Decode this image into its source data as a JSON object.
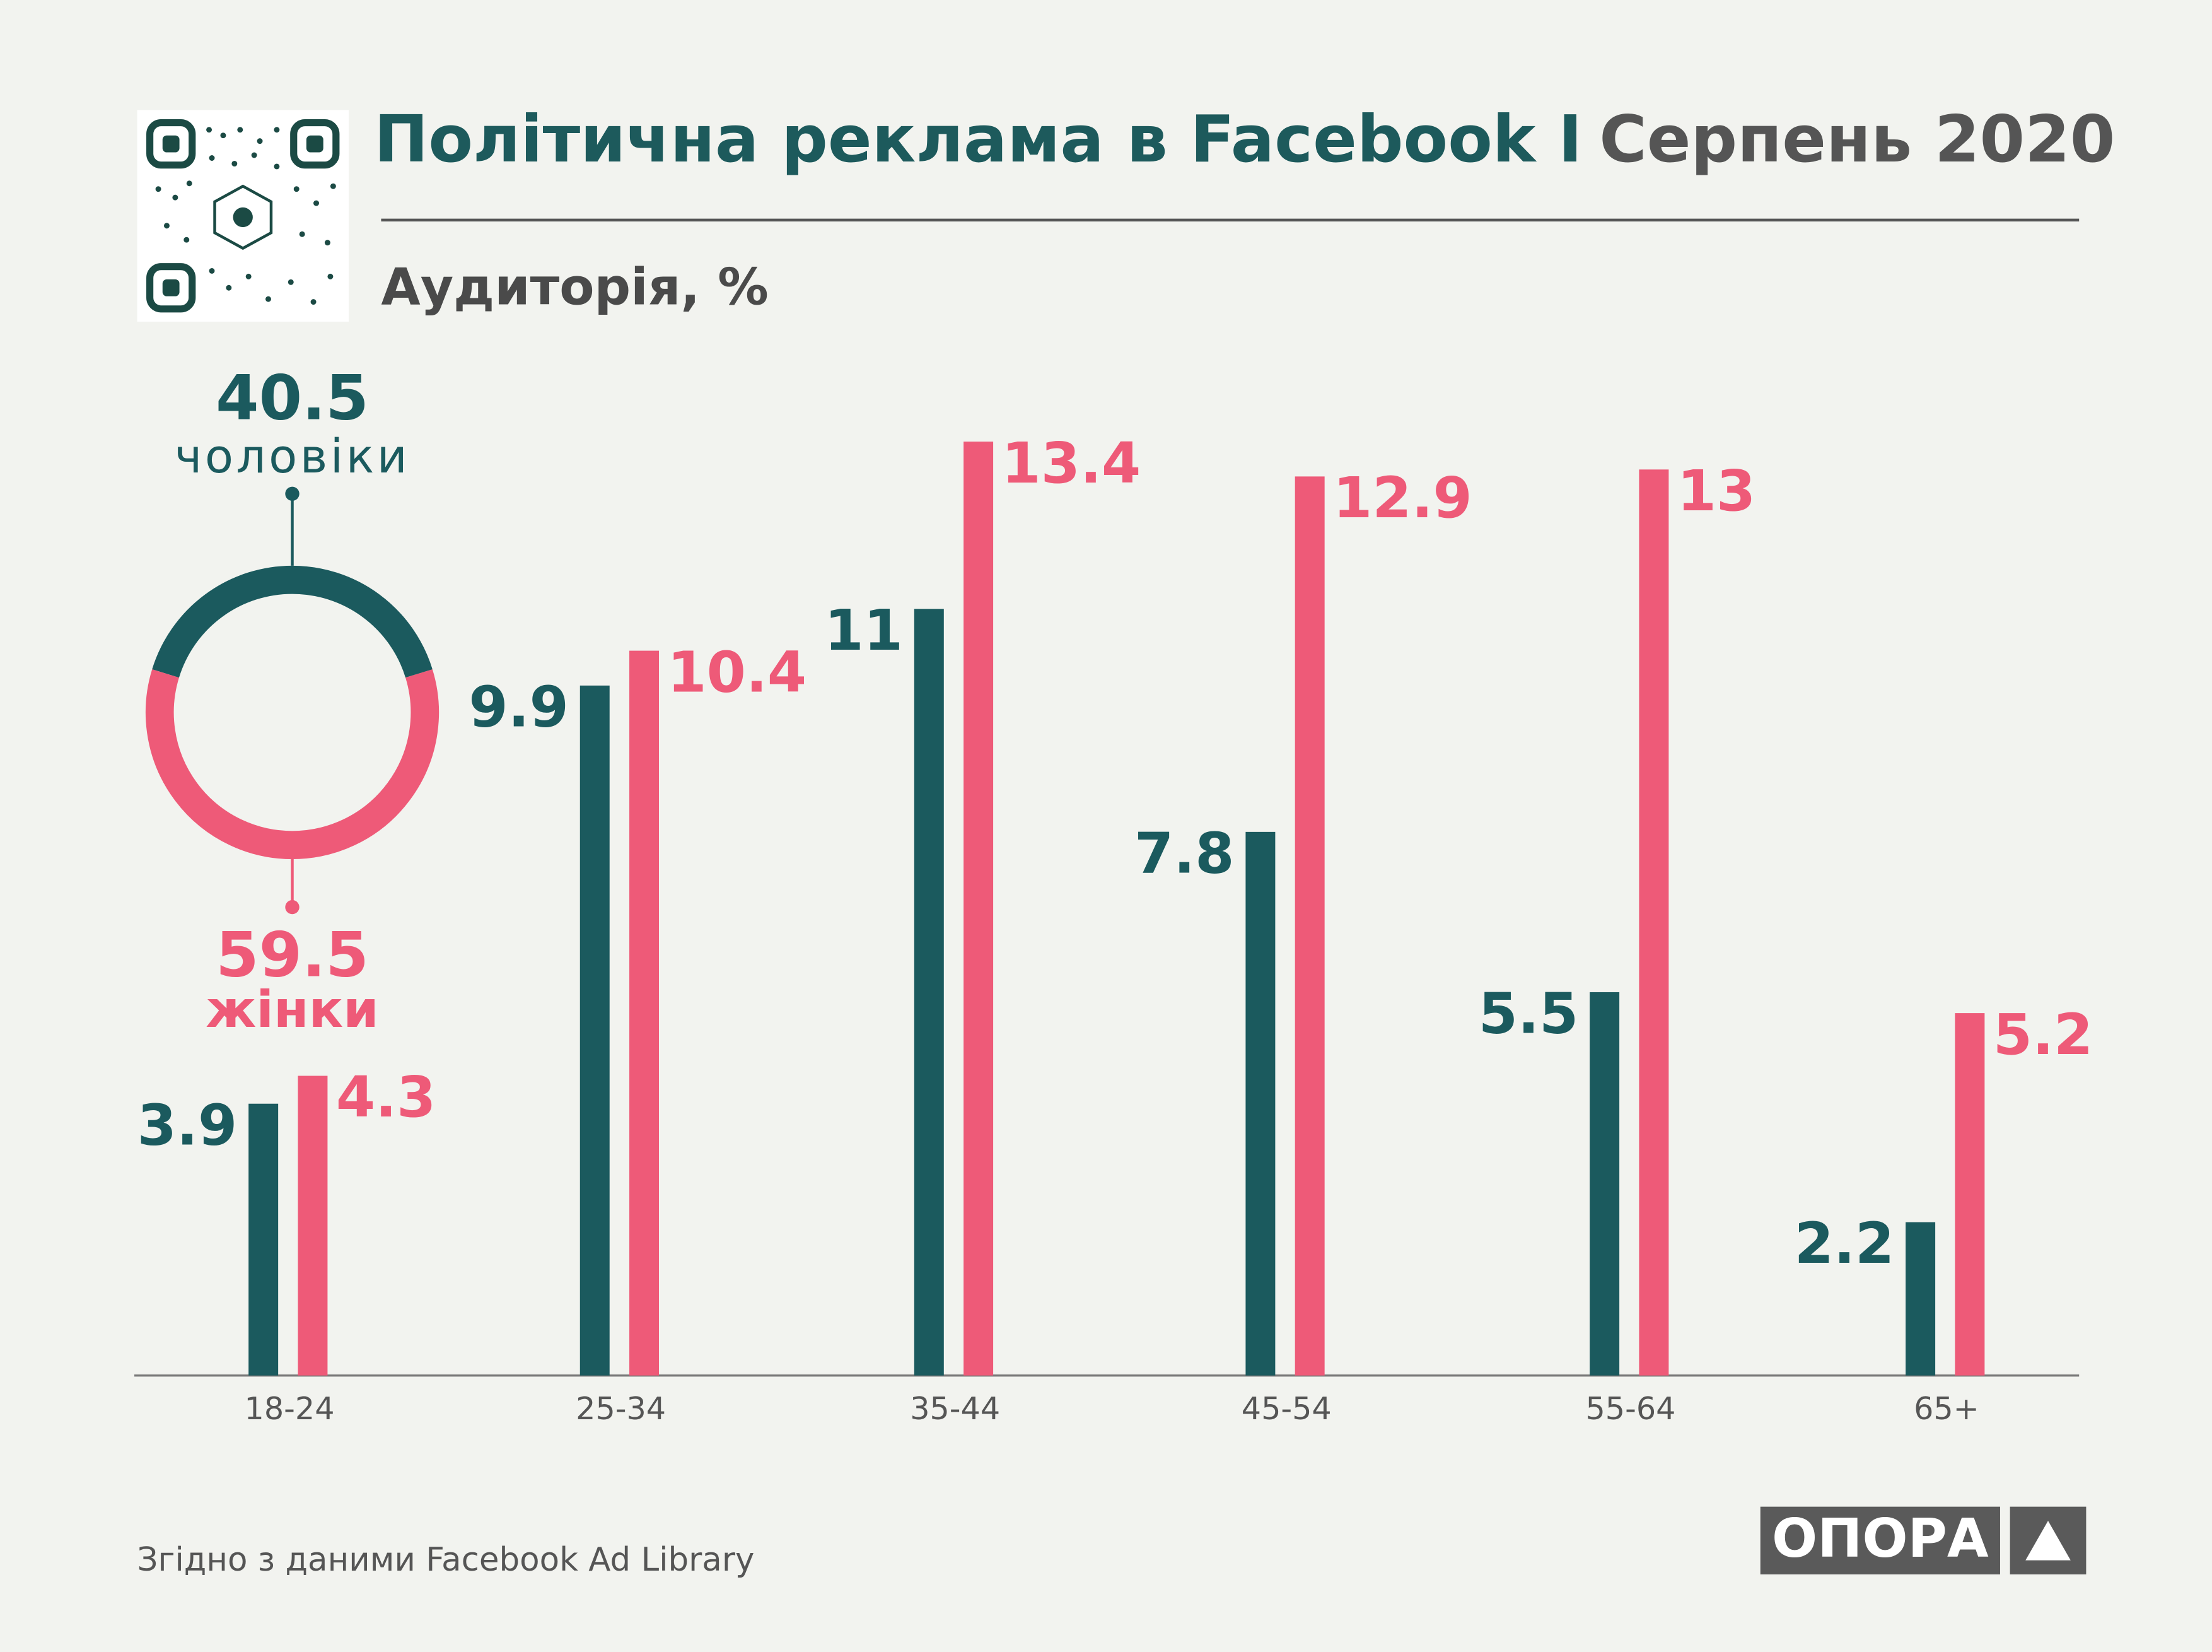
{
  "header": {
    "title": "Політична реклама в Facebook I",
    "title_date": "Серпень 2020",
    "subtitle": "Аудиторія, %"
  },
  "chart_data": [
    {
      "type": "bar",
      "categories": [
        "18-24",
        "25-34",
        "35-44",
        "45-54",
        "55-64",
        "65+"
      ],
      "series": [
        {
          "color": "#1b5a5e",
          "values": [
            3.9,
            9.9,
            11,
            7.8,
            5.5,
            2.2
          ]
        },
        {
          "color": "#ee5a78",
          "values": [
            4.3,
            10.4,
            13.4,
            12.9,
            13,
            5.2
          ]
        }
      ],
      "ylim": [
        0,
        15
      ]
    },
    {
      "type": "pie",
      "categories": [
        "чоловіки",
        "жінки"
      ],
      "values": [
        40.5,
        59.5
      ],
      "colors": [
        "#1b5a5e",
        "#ee5a78"
      ]
    }
  ],
  "footer": {
    "source": "Згідно з даними  Facebook Ad Library",
    "logo": "ОПОРА"
  }
}
